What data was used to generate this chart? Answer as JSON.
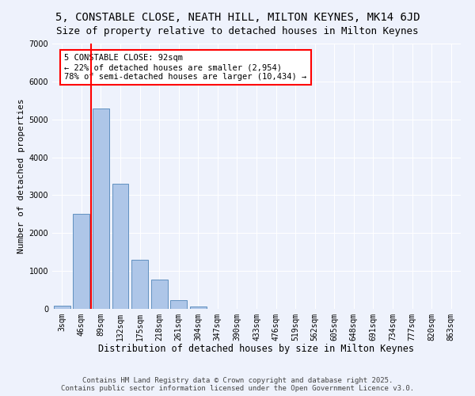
{
  "title1": "5, CONSTABLE CLOSE, NEATH HILL, MILTON KEYNES, MK14 6JD",
  "title2": "Size of property relative to detached houses in Milton Keynes",
  "xlabel": "Distribution of detached houses by size in Milton Keynes",
  "ylabel": "Number of detached properties",
  "categories": [
    "3sqm",
    "46sqm",
    "89sqm",
    "132sqm",
    "175sqm",
    "218sqm",
    "261sqm",
    "304sqm",
    "347sqm",
    "390sqm",
    "433sqm",
    "476sqm",
    "519sqm",
    "562sqm",
    "605sqm",
    "648sqm",
    "691sqm",
    "734sqm",
    "777sqm",
    "820sqm",
    "863sqm"
  ],
  "values": [
    80,
    2500,
    5280,
    3300,
    1300,
    780,
    220,
    60,
    5,
    2,
    1,
    0,
    0,
    0,
    0,
    0,
    0,
    0,
    0,
    0,
    0
  ],
  "bar_color": "#aec6e8",
  "bar_edge_color": "#6090c0",
  "vline_color": "red",
  "vline_pos": 1.5,
  "annotation_text": "5 CONSTABLE CLOSE: 92sqm\n← 22% of detached houses are smaller (2,954)\n78% of semi-detached houses are larger (10,434) →",
  "annotation_box_color": "white",
  "annotation_box_edge": "red",
  "ylim": [
    0,
    7000
  ],
  "yticks": [
    0,
    1000,
    2000,
    3000,
    4000,
    5000,
    6000,
    7000
  ],
  "bg_color": "#eef2fc",
  "footer1": "Contains HM Land Registry data © Crown copyright and database right 2025.",
  "footer2": "Contains public sector information licensed under the Open Government Licence v3.0.",
  "title1_fontsize": 10,
  "title2_fontsize": 9,
  "xlabel_fontsize": 8.5,
  "ylabel_fontsize": 8,
  "tick_fontsize": 7,
  "annotation_fontsize": 7.5,
  "footer_fontsize": 6.5
}
